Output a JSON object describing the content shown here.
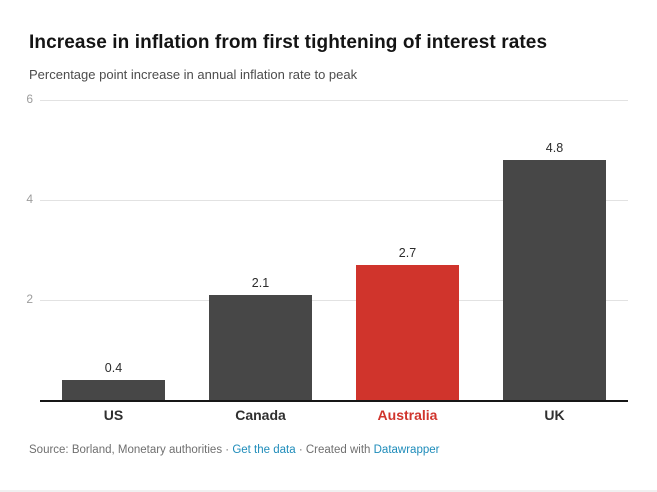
{
  "header": {
    "title": "Increase in inflation from first tightening of interest rates",
    "subtitle": "Percentage point increase in annual inflation rate to peak"
  },
  "chart_data": {
    "type": "bar",
    "title": "Increase in inflation from first tightening of interest rates",
    "subtitle": "Percentage point increase in annual inflation rate to peak",
    "categories": [
      "US",
      "Canada",
      "Australia",
      "UK"
    ],
    "values": [
      0.4,
      2.1,
      2.7,
      4.8
    ],
    "value_labels": [
      "0.4",
      "2.1",
      "2.7",
      "4.8"
    ],
    "xlabel": "",
    "ylabel": "",
    "ylim": [
      0,
      6
    ],
    "yticks": [
      2,
      4,
      6
    ],
    "grid": true,
    "legend": "none",
    "bar_color": "#474747",
    "highlight_category": "Australia",
    "highlight_color": "#d0342c"
  },
  "footer": {
    "source_label": "Source:",
    "source_text": "Borland, Monetary authorities",
    "separator1": "·",
    "get_data_link": "Get the data",
    "separator2": "·",
    "created_with": "Created with",
    "datawrapper_link": "Datawrapper",
    "link_color": "#1e8cba"
  },
  "colors": {
    "bar": "#474747",
    "highlight": "#d0342c",
    "gridline": "#e2e2e2",
    "axis_line": "#161616",
    "tick_label": "#9d9d9d",
    "link": "#1e8cba"
  }
}
